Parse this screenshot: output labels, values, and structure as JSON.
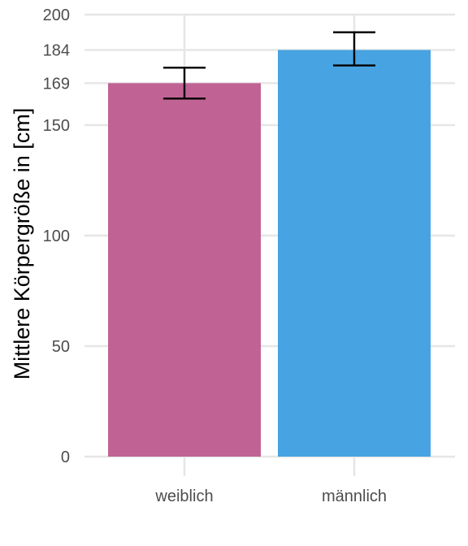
{
  "chart_data": {
    "type": "bar",
    "categories": [
      "weiblich",
      "männlich"
    ],
    "values": [
      169,
      184
    ],
    "error_bars": [
      {
        "low": 162,
        "high": 176
      },
      {
        "low": 177,
        "high": 192
      }
    ],
    "colors": [
      "#c06394",
      "#47a3e2"
    ],
    "ylabel": "Mittlere Körpergröße in [cm]",
    "xlabel": "",
    "ylim": [
      0,
      200
    ],
    "yticks": [
      0,
      50,
      100,
      150,
      169,
      184,
      200
    ],
    "grid": true,
    "legend": "none"
  }
}
